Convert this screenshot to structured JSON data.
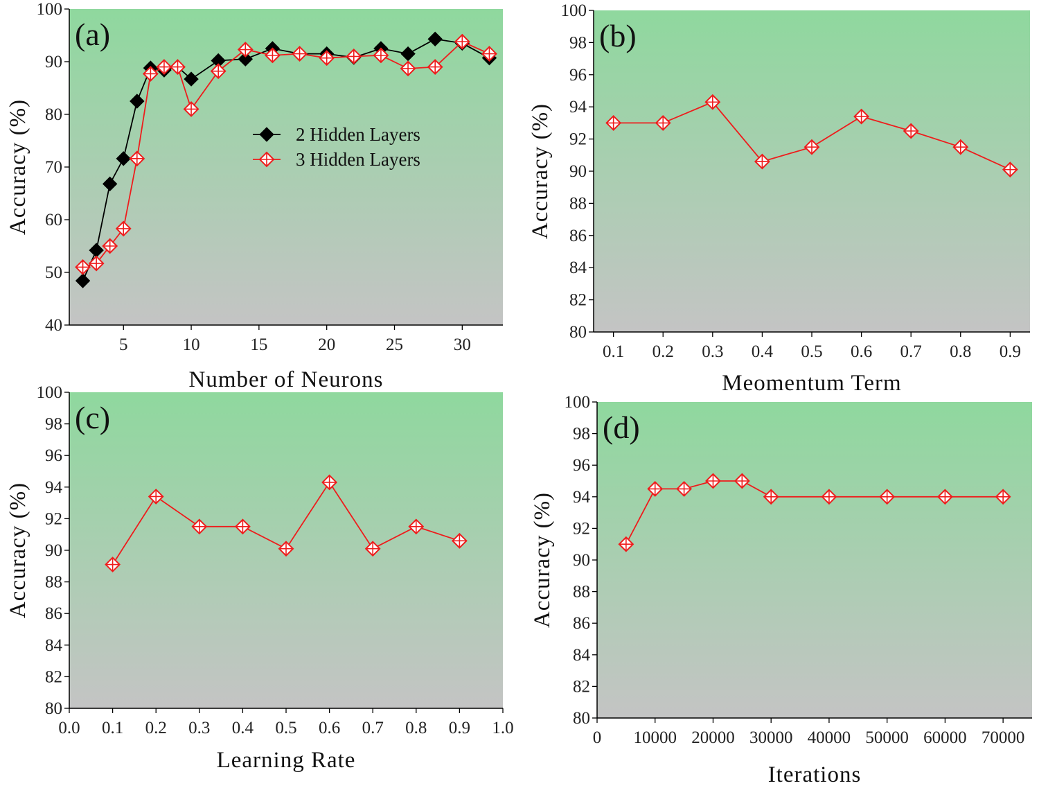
{
  "colors": {
    "background_top": "#8fd89e",
    "background_bottom": "#c4c4c4",
    "series_black": "#000000",
    "series_red": "#ee1c1c"
  },
  "chart_data": [
    {
      "panel_label": "(a)",
      "type": "line",
      "xlabel": "Number of Neurons",
      "ylabel": "Accuracy (%)",
      "xlim": [
        1,
        33
      ],
      "ylim": [
        40,
        100
      ],
      "xticks": [
        5,
        10,
        15,
        20,
        25,
        30
      ],
      "yticks": [
        40,
        50,
        60,
        70,
        80,
        90,
        100
      ],
      "legend_position": "center",
      "series": [
        {
          "name": "2 Hidden Layers",
          "marker": "diamond-filled",
          "color": "#000000",
          "x": [
            2,
            3,
            4,
            5,
            6,
            7,
            8,
            9,
            10,
            12,
            14,
            16,
            18,
            20,
            22,
            24,
            26,
            28,
            30,
            32
          ],
          "y": [
            48.4,
            54.2,
            66.8,
            71.6,
            82.5,
            88.8,
            88.4,
            89.0,
            86.7,
            90.2,
            90.5,
            92.5,
            91.5,
            91.5,
            90.8,
            92.5,
            91.5,
            94.3,
            93.5,
            90.7
          ]
        },
        {
          "name": "3 Hidden Layers",
          "marker": "diamond-cross",
          "color": "#ee1c1c",
          "x": [
            2,
            3,
            4,
            5,
            6,
            7,
            8,
            9,
            10,
            12,
            14,
            16,
            18,
            20,
            22,
            24,
            26,
            28,
            30,
            32
          ],
          "y": [
            51.0,
            51.7,
            55.0,
            58.3,
            71.6,
            87.7,
            89.0,
            89.0,
            81.0,
            88.2,
            92.3,
            91.2,
            91.5,
            90.7,
            91.0,
            91.2,
            88.7,
            89.0,
            93.8,
            91.5
          ]
        }
      ]
    },
    {
      "panel_label": "(b)",
      "type": "line",
      "xlabel": "Meomentum Term",
      "ylabel": "Accuracy (%)",
      "xlim": [
        0.06,
        0.94
      ],
      "ylim": [
        80,
        100
      ],
      "xticks": [
        0.1,
        0.2,
        0.3,
        0.4,
        0.5,
        0.6,
        0.7,
        0.8,
        0.9
      ],
      "yticks": [
        80,
        82,
        84,
        86,
        88,
        90,
        92,
        94,
        96,
        98,
        100
      ],
      "series": [
        {
          "name": "Accuracy",
          "marker": "diamond-cross",
          "color": "#ee1c1c",
          "x": [
            0.1,
            0.2,
            0.3,
            0.4,
            0.5,
            0.6,
            0.7,
            0.8,
            0.9
          ],
          "y": [
            93.0,
            93.0,
            94.3,
            90.6,
            91.5,
            93.4,
            92.5,
            91.5,
            90.1
          ]
        }
      ]
    },
    {
      "panel_label": "(c)",
      "type": "line",
      "xlabel": "Learning Rate",
      "ylabel": "Accuracy (%)",
      "xlim": [
        0.0,
        1.0
      ],
      "ylim": [
        80,
        100
      ],
      "xticks": [
        0.0,
        0.1,
        0.2,
        0.3,
        0.4,
        0.5,
        0.6,
        0.7,
        0.8,
        0.9,
        1.0
      ],
      "yticks": [
        80,
        82,
        84,
        86,
        88,
        90,
        92,
        94,
        96,
        98,
        100
      ],
      "series": [
        {
          "name": "Accuracy",
          "marker": "diamond-cross",
          "color": "#ee1c1c",
          "x": [
            0.1,
            0.2,
            0.3,
            0.4,
            0.5,
            0.6,
            0.7,
            0.8,
            0.9
          ],
          "y": [
            89.1,
            93.4,
            91.5,
            91.5,
            90.1,
            94.3,
            90.1,
            91.5,
            90.6
          ]
        }
      ]
    },
    {
      "panel_label": "(d)",
      "type": "line",
      "xlabel": "Iterations",
      "ylabel": "Accuracy (%)",
      "xlim": [
        0,
        75000
      ],
      "ylim": [
        80,
        100
      ],
      "xticks": [
        0,
        10000,
        20000,
        30000,
        40000,
        50000,
        60000,
        70000
      ],
      "yticks": [
        80,
        82,
        84,
        86,
        88,
        90,
        92,
        94,
        96,
        98,
        100
      ],
      "series": [
        {
          "name": "Accuracy",
          "marker": "diamond-cross",
          "color": "#ee1c1c",
          "x": [
            5000,
            10000,
            15000,
            20000,
            25000,
            30000,
            40000,
            50000,
            60000,
            70000
          ],
          "y": [
            91.0,
            94.5,
            94.5,
            95.0,
            95.0,
            94.0,
            94.0,
            94.0,
            94.0,
            94.0
          ]
        }
      ]
    }
  ]
}
